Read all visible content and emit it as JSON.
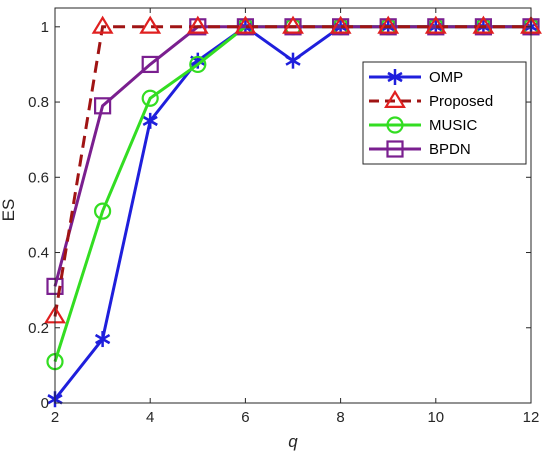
{
  "chart_data": {
    "type": "line",
    "xlabel": "q",
    "ylabel": "ES",
    "xlim": [
      2,
      12
    ],
    "ylim": [
      0,
      1.05
    ],
    "xticks": [
      2,
      4,
      6,
      8,
      10,
      12
    ],
    "yticks": [
      0,
      0.2,
      0.4,
      0.6,
      0.8,
      1
    ],
    "ytick_labels": [
      "0",
      "0.2",
      "0.4",
      "0.6",
      "0.8",
      "1"
    ],
    "grid": false,
    "legend_position": "top-right",
    "x": [
      2,
      3,
      4,
      5,
      6,
      7,
      8,
      9,
      10,
      11,
      12
    ],
    "series": [
      {
        "name": "OMP",
        "color": "#1f1fdc",
        "marker": "asterisk",
        "line": "solid",
        "values": [
          0.01,
          0.17,
          0.75,
          0.91,
          1.0,
          0.91,
          1.0,
          1.0,
          1.0,
          1.0,
          1.0
        ]
      },
      {
        "name": "Proposed",
        "color": "#a01414",
        "marker_color": "#e02020",
        "marker": "triangle",
        "line": "dashed",
        "values": [
          0.23,
          1.0,
          1.0,
          1.0,
          1.0,
          1.0,
          1.0,
          1.0,
          1.0,
          1.0,
          1.0
        ]
      },
      {
        "name": "MUSIC",
        "color": "#33dd22",
        "marker": "circle",
        "line": "solid",
        "values": [
          0.11,
          0.51,
          0.81,
          0.9,
          1.0,
          1.0,
          1.0,
          1.0,
          1.0,
          1.0,
          1.0
        ]
      },
      {
        "name": "BPDN",
        "color": "#7a1f8f",
        "marker": "square",
        "line": "solid",
        "values": [
          0.31,
          0.79,
          0.9,
          1.0,
          1.0,
          1.0,
          1.0,
          1.0,
          1.0,
          1.0,
          1.0
        ]
      }
    ]
  }
}
